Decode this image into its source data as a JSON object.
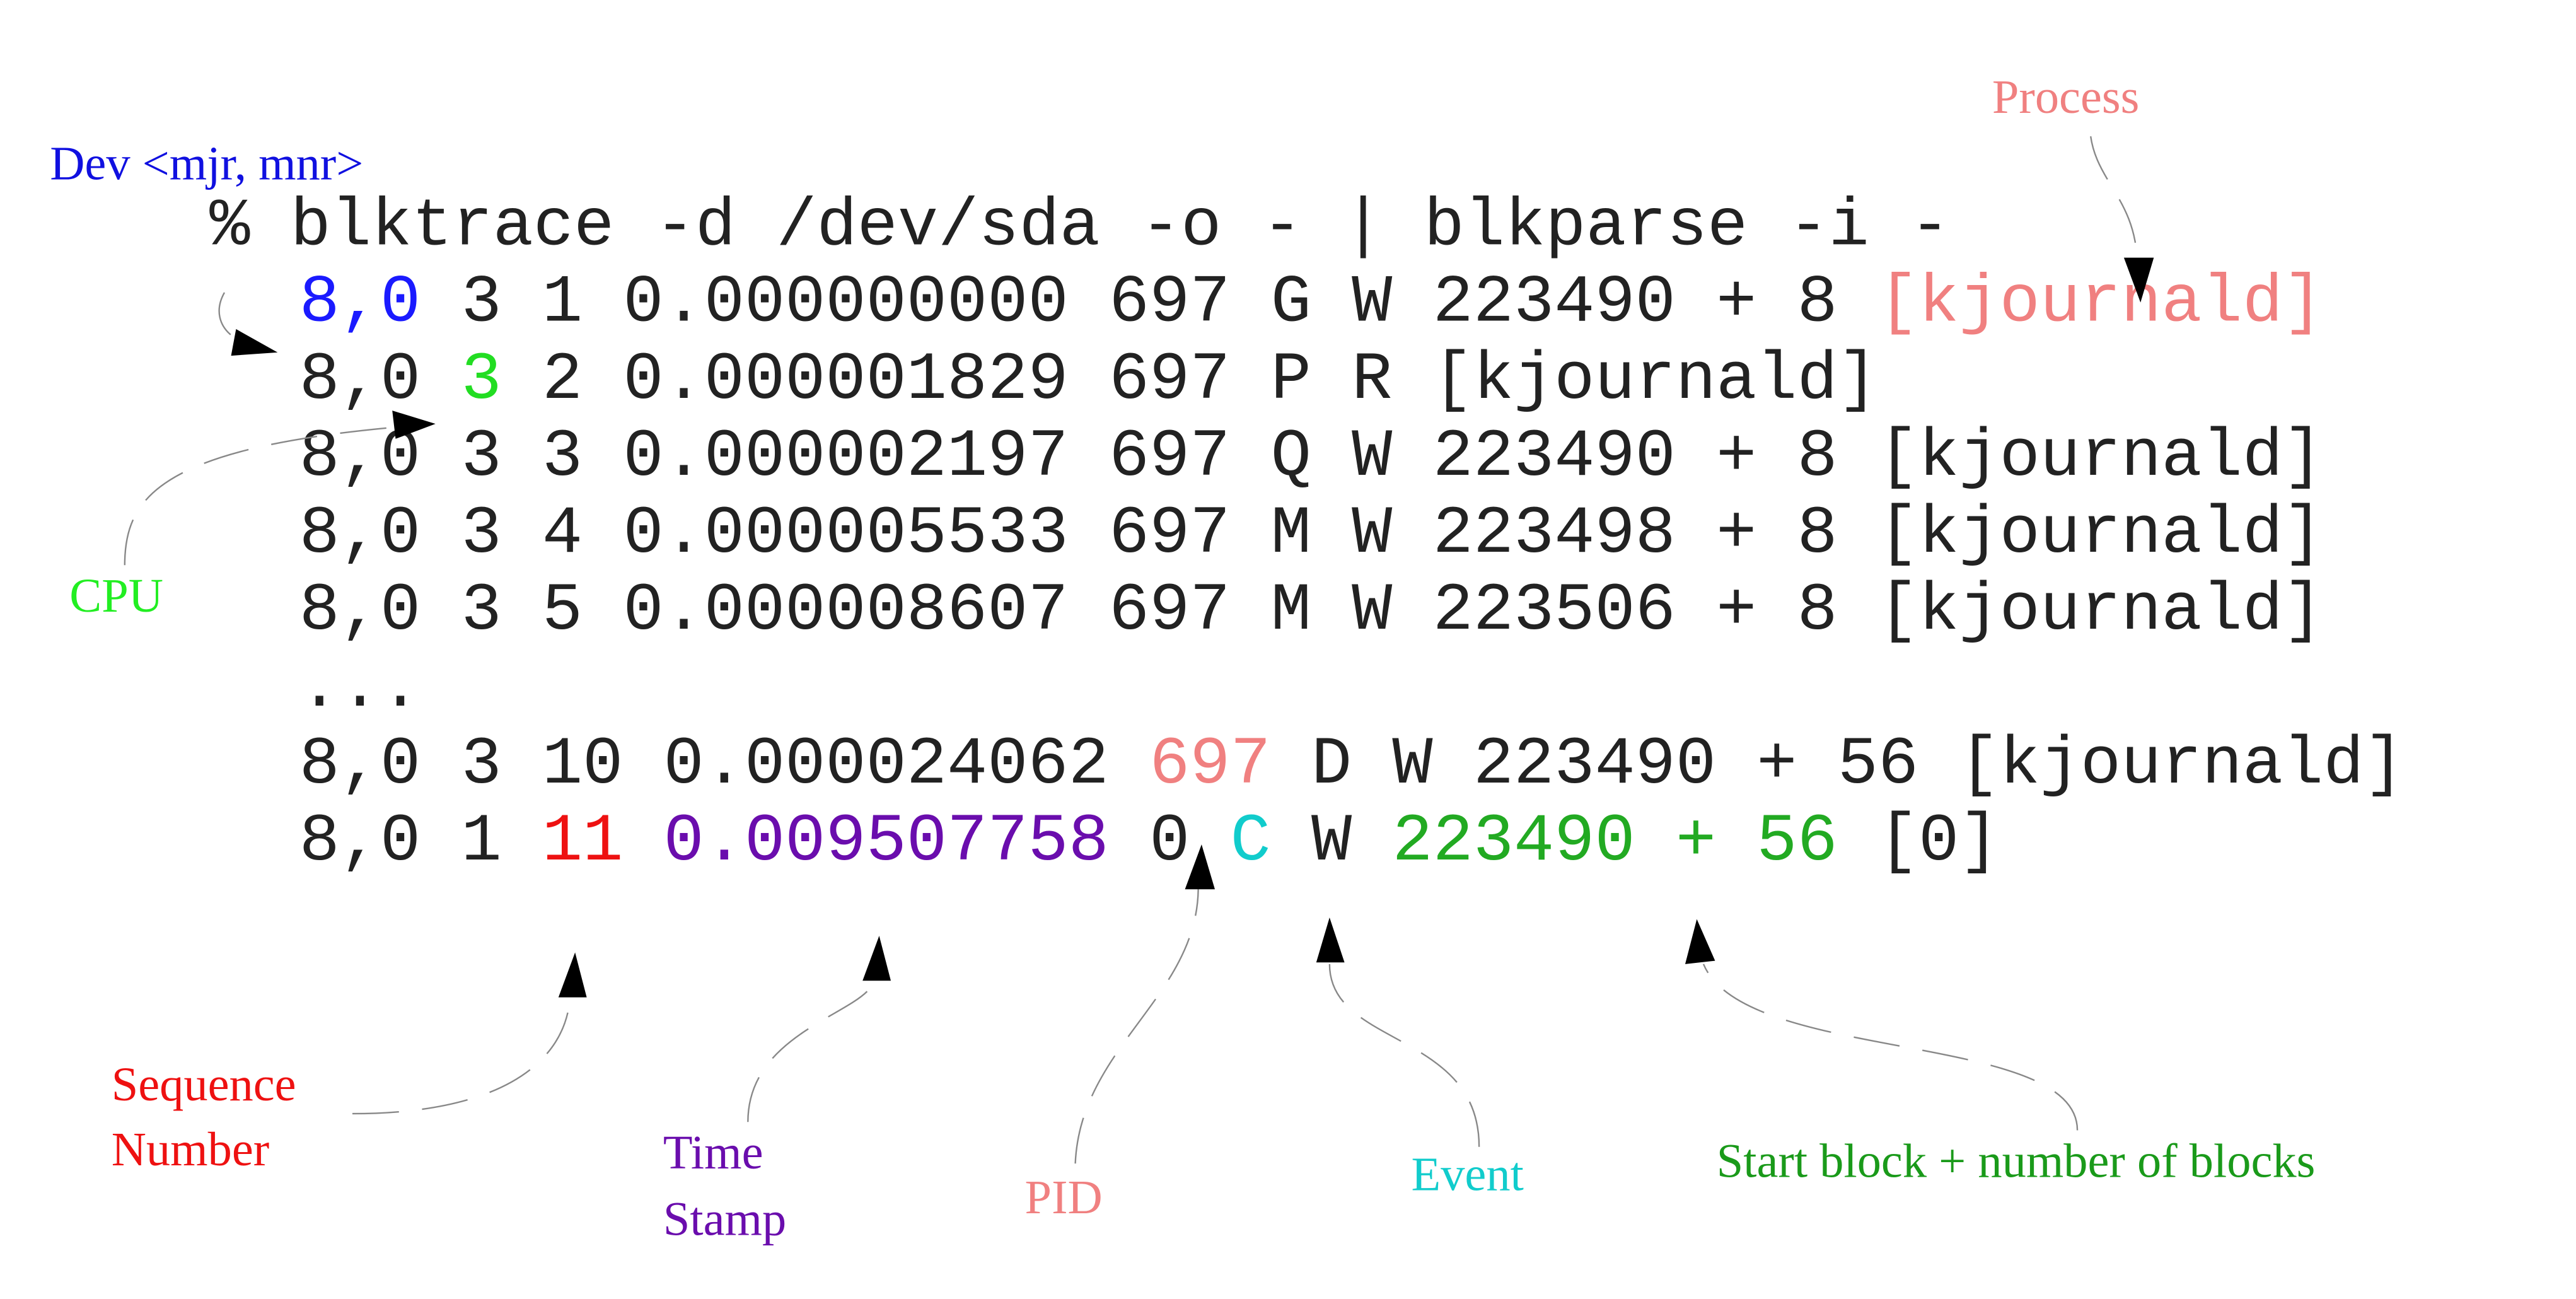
{
  "command": "% blktrace -d /dev/sda -o - | blkparse -i -",
  "rows": [
    [
      "8,0",
      "3",
      "1",
      "0.000000000",
      "697",
      "G",
      "W",
      "223490 + 8",
      "[kjournald]"
    ],
    [
      "8,0",
      "3",
      "2",
      "0.000001829",
      "697",
      "P",
      "R",
      "[kjournald]"
    ],
    [
      "8,0",
      "3",
      "3",
      "0.000002197",
      "697",
      "Q",
      "W",
      "223490 + 8",
      "[kjournald]"
    ],
    [
      "8,0",
      "3",
      "4",
      "0.000005533",
      "697",
      "M",
      "W",
      "223498 + 8",
      "[kjournald]"
    ],
    [
      "8,0",
      "3",
      "5",
      "0.000008607",
      "697",
      "M",
      "W",
      "223506 + 8",
      "[kjournald]"
    ],
    [
      "..."
    ],
    [
      "8,0",
      "3",
      "10",
      "0.000024062",
      "697",
      "D",
      "W",
      "223490 + 56",
      "[kjournald]"
    ],
    [
      "8,0",
      "1",
      "11",
      "0.009507758",
      "0",
      "C",
      "W",
      "223490 + 56",
      "[0]"
    ]
  ],
  "labels": {
    "dev": "Dev <mjr, mnr>",
    "process": "Process",
    "cpu": "CPU",
    "sequence": [
      "Sequence",
      "Number"
    ],
    "time": [
      "Time",
      "Stamp"
    ],
    "pid": "PID",
    "event": "Event",
    "block": "Start block + number of blocks"
  }
}
